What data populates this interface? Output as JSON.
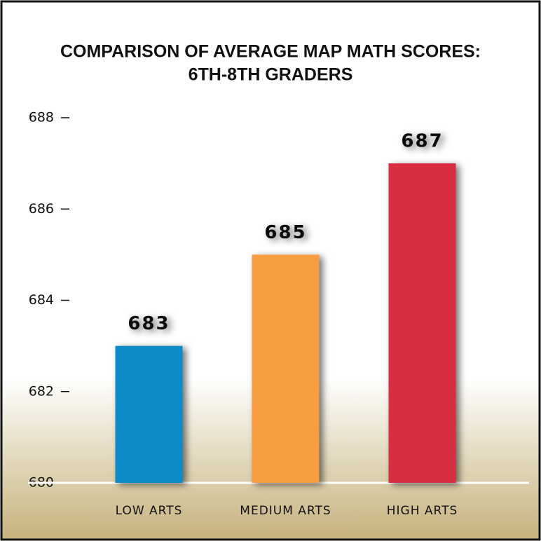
{
  "chart_data": {
    "type": "bar",
    "title": [
      "COMPARISON OF AVERAGE MAP MATH SCORES:",
      "6TH-8TH GRADERS"
    ],
    "categories": [
      "LOW ARTS",
      "MEDIUM ARTS",
      "HIGH ARTS"
    ],
    "values": [
      683,
      685,
      687
    ],
    "colors": [
      "#0a8bc9",
      "#f79d42",
      "#d72d43"
    ],
    "ylim": [
      680,
      688
    ],
    "yticks": [
      680,
      682,
      684,
      686,
      688
    ]
  }
}
